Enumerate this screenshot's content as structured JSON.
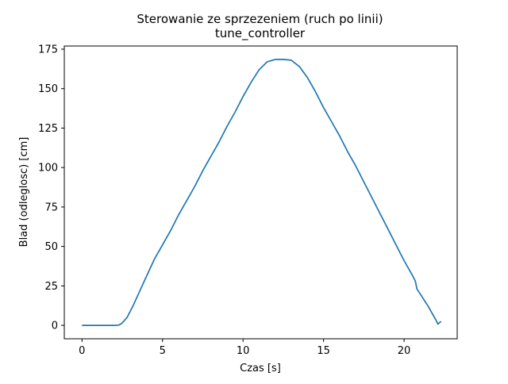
{
  "chart_data": {
    "type": "line",
    "title": "Sterowanie ze sprzezeniem (ruch po linii)",
    "subtitle": "tune_controller",
    "xlabel": "Czas [s]",
    "ylabel": "Blad (odleglosc) [cm]",
    "xlim": [
      -1.1,
      23.3
    ],
    "ylim": [
      -8.5,
      177
    ],
    "xticks": [
      0,
      5,
      10,
      15,
      20
    ],
    "yticks": [
      0,
      25,
      50,
      75,
      100,
      125,
      150,
      175
    ],
    "grid": false,
    "series": [
      {
        "color": "#1f77b4",
        "points": [
          [
            0,
            0
          ],
          [
            1.0,
            0
          ],
          [
            2.0,
            0
          ],
          [
            2.3,
            0.2
          ],
          [
            2.5,
            1.5
          ],
          [
            2.8,
            5
          ],
          [
            3.2,
            13
          ],
          [
            3.6,
            22
          ],
          [
            4.0,
            31
          ],
          [
            4.5,
            42
          ],
          [
            5.0,
            51
          ],
          [
            5.5,
            60
          ],
          [
            6.0,
            70
          ],
          [
            6.5,
            79
          ],
          [
            7.0,
            88
          ],
          [
            7.5,
            98
          ],
          [
            8.0,
            107
          ],
          [
            8.5,
            116
          ],
          [
            9.0,
            126
          ],
          [
            9.5,
            135
          ],
          [
            10.0,
            145
          ],
          [
            10.5,
            154
          ],
          [
            11.0,
            162
          ],
          [
            11.5,
            167
          ],
          [
            12.0,
            168.5
          ],
          [
            12.5,
            168.5
          ],
          [
            13.0,
            168
          ],
          [
            13.5,
            164
          ],
          [
            14.0,
            157
          ],
          [
            14.5,
            148
          ],
          [
            15.0,
            138
          ],
          [
            15.5,
            129
          ],
          [
            16.0,
            120
          ],
          [
            16.5,
            110
          ],
          [
            17.0,
            101
          ],
          [
            17.5,
            91
          ],
          [
            18.0,
            81
          ],
          [
            18.5,
            71
          ],
          [
            19.0,
            61
          ],
          [
            19.5,
            51
          ],
          [
            20.0,
            41
          ],
          [
            20.5,
            32
          ],
          [
            20.7,
            28
          ],
          [
            20.8,
            23
          ],
          [
            21.0,
            20
          ],
          [
            21.5,
            12
          ],
          [
            22.0,
            3
          ],
          [
            22.1,
            0.8
          ],
          [
            22.3,
            2.5
          ]
        ]
      }
    ]
  }
}
